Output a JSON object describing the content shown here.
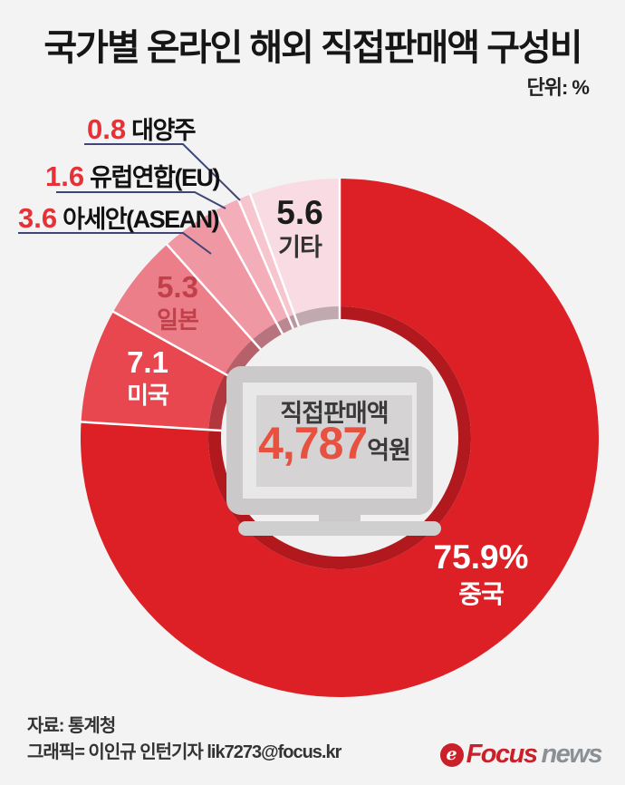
{
  "header": {
    "title": "국가별 온라인 해외 직접판매액 구성비",
    "unit": "단위: %"
  },
  "chart_data": {
    "type": "pie",
    "variant": "donut",
    "title": "국가별 온라인 해외 직접판매액 구성비",
    "unit": "%",
    "start_angle_deg": 0,
    "direction": "clockwise",
    "segments": [
      {
        "label": "중국",
        "value": 75.9,
        "display": "75.9%",
        "color": "#dc2026",
        "shadow": "#b2191f"
      },
      {
        "label": "미국",
        "value": 7.1,
        "display": "7.1",
        "color": "#e8474f",
        "shadow": "#b2363d"
      },
      {
        "label": "일본",
        "value": 5.3,
        "display": "5.3",
        "color": "#ec7e89",
        "shadow": "#b76069"
      },
      {
        "label": "아세안(ASEAN)",
        "value": 3.6,
        "display": "3.6",
        "color": "#ef97a3",
        "shadow": "#b8747e"
      },
      {
        "label": "유럽연합(EU)",
        "value": 1.6,
        "display": "1.6",
        "color": "#f3aeba",
        "shadow": "#bb8791"
      },
      {
        "label": "대양주",
        "value": 0.8,
        "display": "0.8",
        "color": "#f6c5ce",
        "shadow": "#bd97a0"
      },
      {
        "label": "기타",
        "value": 5.6,
        "display": "5.6",
        "color": "#f9dce3",
        "shadow": "#c0a9af"
      }
    ],
    "center": {
      "label": "직접판매액",
      "value": "4,787",
      "unit": "억원",
      "icon": "monitor-icon"
    },
    "hole_color": "#f2f1f1",
    "separator_color": "#ffffff",
    "callout_line_color": "#3e4677"
  },
  "footer": {
    "source": "자료: 통계청",
    "credit": "그래픽= 이인규 인턴기자 lik7273@focus.kr",
    "logo": {
      "icon": "e",
      "focus": "Focus",
      "news": "news"
    }
  }
}
